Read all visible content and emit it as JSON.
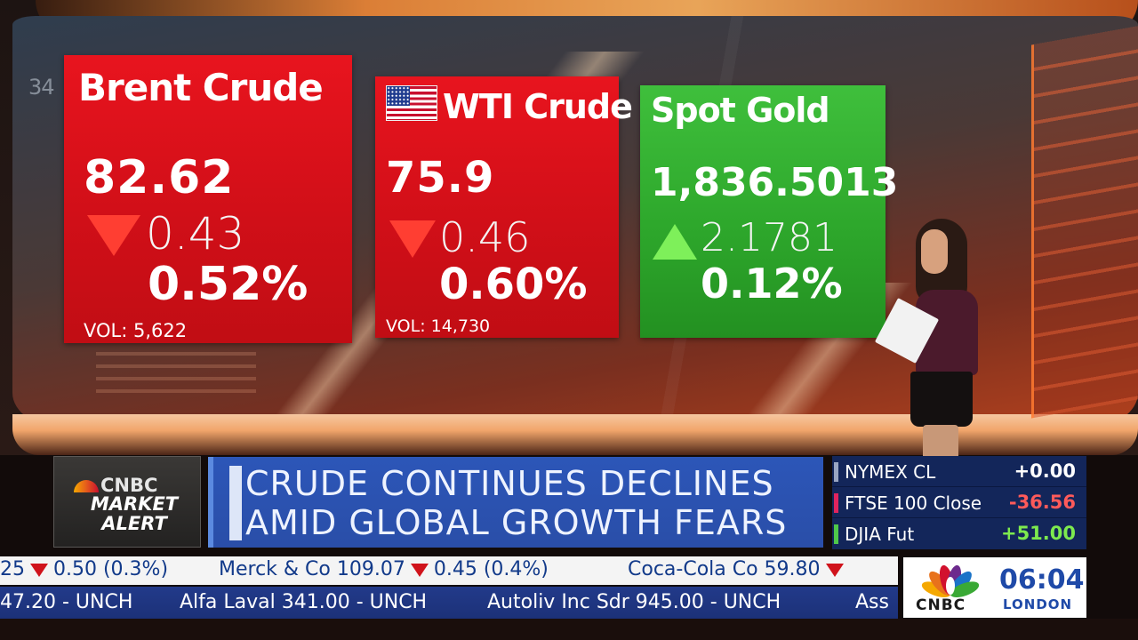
{
  "wall": {
    "number": "34"
  },
  "cards": [
    {
      "name": "Brent Crude",
      "price": "82.62",
      "direction": "down",
      "change": "0.43",
      "percent": "0.52%",
      "volume": "VOL: 5,622",
      "color": "#d10f18"
    },
    {
      "name": "WTI Crude",
      "price": "75.9",
      "direction": "down",
      "change": "0.46",
      "percent": "0.60%",
      "volume": "VOL: 14,730",
      "color": "#d10f18",
      "icon": "us-flag-icon"
    },
    {
      "name": "Spot Gold",
      "price": "1,836.5013",
      "direction": "up",
      "change": "2.1781",
      "percent": "0.12%",
      "color": "#2ea82c"
    }
  ],
  "alert": {
    "brand": "CNBC",
    "line1": "MARKET",
    "line2": "ALERT"
  },
  "headline": {
    "line1": "CRUDE CONTINUES DECLINES",
    "line2": "AMID GLOBAL GROWTH FEARS"
  },
  "indices": [
    {
      "label": "NYMEX CL",
      "value": "+0.00",
      "value_color": "#ffffff",
      "flag_color": "#9aa6c2"
    },
    {
      "label": "FTSE 100 Close",
      "value": "-36.56",
      "value_color": "#ff5a5a",
      "flag_color": "#e0245e"
    },
    {
      "label": "DJIA Fut",
      "value": "+51.00",
      "value_color": "#7dea4e",
      "flag_color": "#4fc84a"
    }
  ],
  "ticker_top": [
    {
      "text_before": "25",
      "arrow": "down",
      "text_after": "0.50 (0.3%)"
    },
    {
      "text_before": "Merck & Co 109.07",
      "arrow": "down",
      "text_after": "0.45 (0.4%)"
    },
    {
      "text_before": "Coca-Cola Co 59.80",
      "arrow": "down",
      "text_after": ""
    }
  ],
  "ticker_bottom": [
    {
      "text": "47.20 - UNCH"
    },
    {
      "text": "Alfa Laval 341.00 - UNCH"
    },
    {
      "text": "Autoliv Inc Sdr 945.00 - UNCH"
    },
    {
      "text": "Ass"
    }
  ],
  "clock": {
    "brand": "CNBC",
    "time": "06:04",
    "city": "LONDON"
  },
  "colors": {
    "accent_blue": "#1f4aa8",
    "down_red": "#d0131b",
    "up_green": "#2ea82c"
  }
}
